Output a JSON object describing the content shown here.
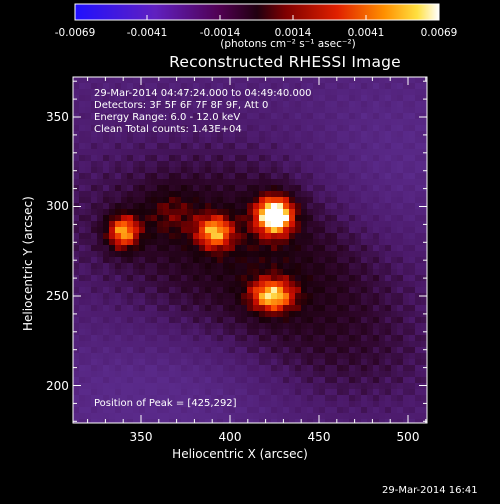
{
  "colorbar": {
    "tick_labels": [
      "-0.0069",
      "-0.0041",
      "-0.0014",
      "0.0014",
      "0.0041",
      "0.0069"
    ],
    "unit_label": "(photons cm⁻² s⁻¹ asec⁻²)"
  },
  "plot": {
    "title": "Reconstructed RHESSI Image",
    "info_lines": [
      "29-Mar-2014 04:47:24.000 to 04:49:40.000",
      "Detectors: 3F 5F 6F 7F 8F 9F, Att 0",
      "Energy Range: 6.0 - 12.0 keV",
      "Clean    Total counts: 1.43E+04"
    ],
    "peak_text": "Position of Peak = [425,292]",
    "xlabel": "Heliocentric X (arcsec)",
    "ylabel": "Heliocentric Y (arcsec)",
    "x_ticks": [
      "350",
      "400",
      "450",
      "500"
    ],
    "y_ticks": [
      "350",
      "300",
      "250",
      "200"
    ]
  },
  "timestamp": "29-Mar-2014 16:41",
  "colors": {
    "background": "#000000",
    "axis": "#ffffff"
  }
}
